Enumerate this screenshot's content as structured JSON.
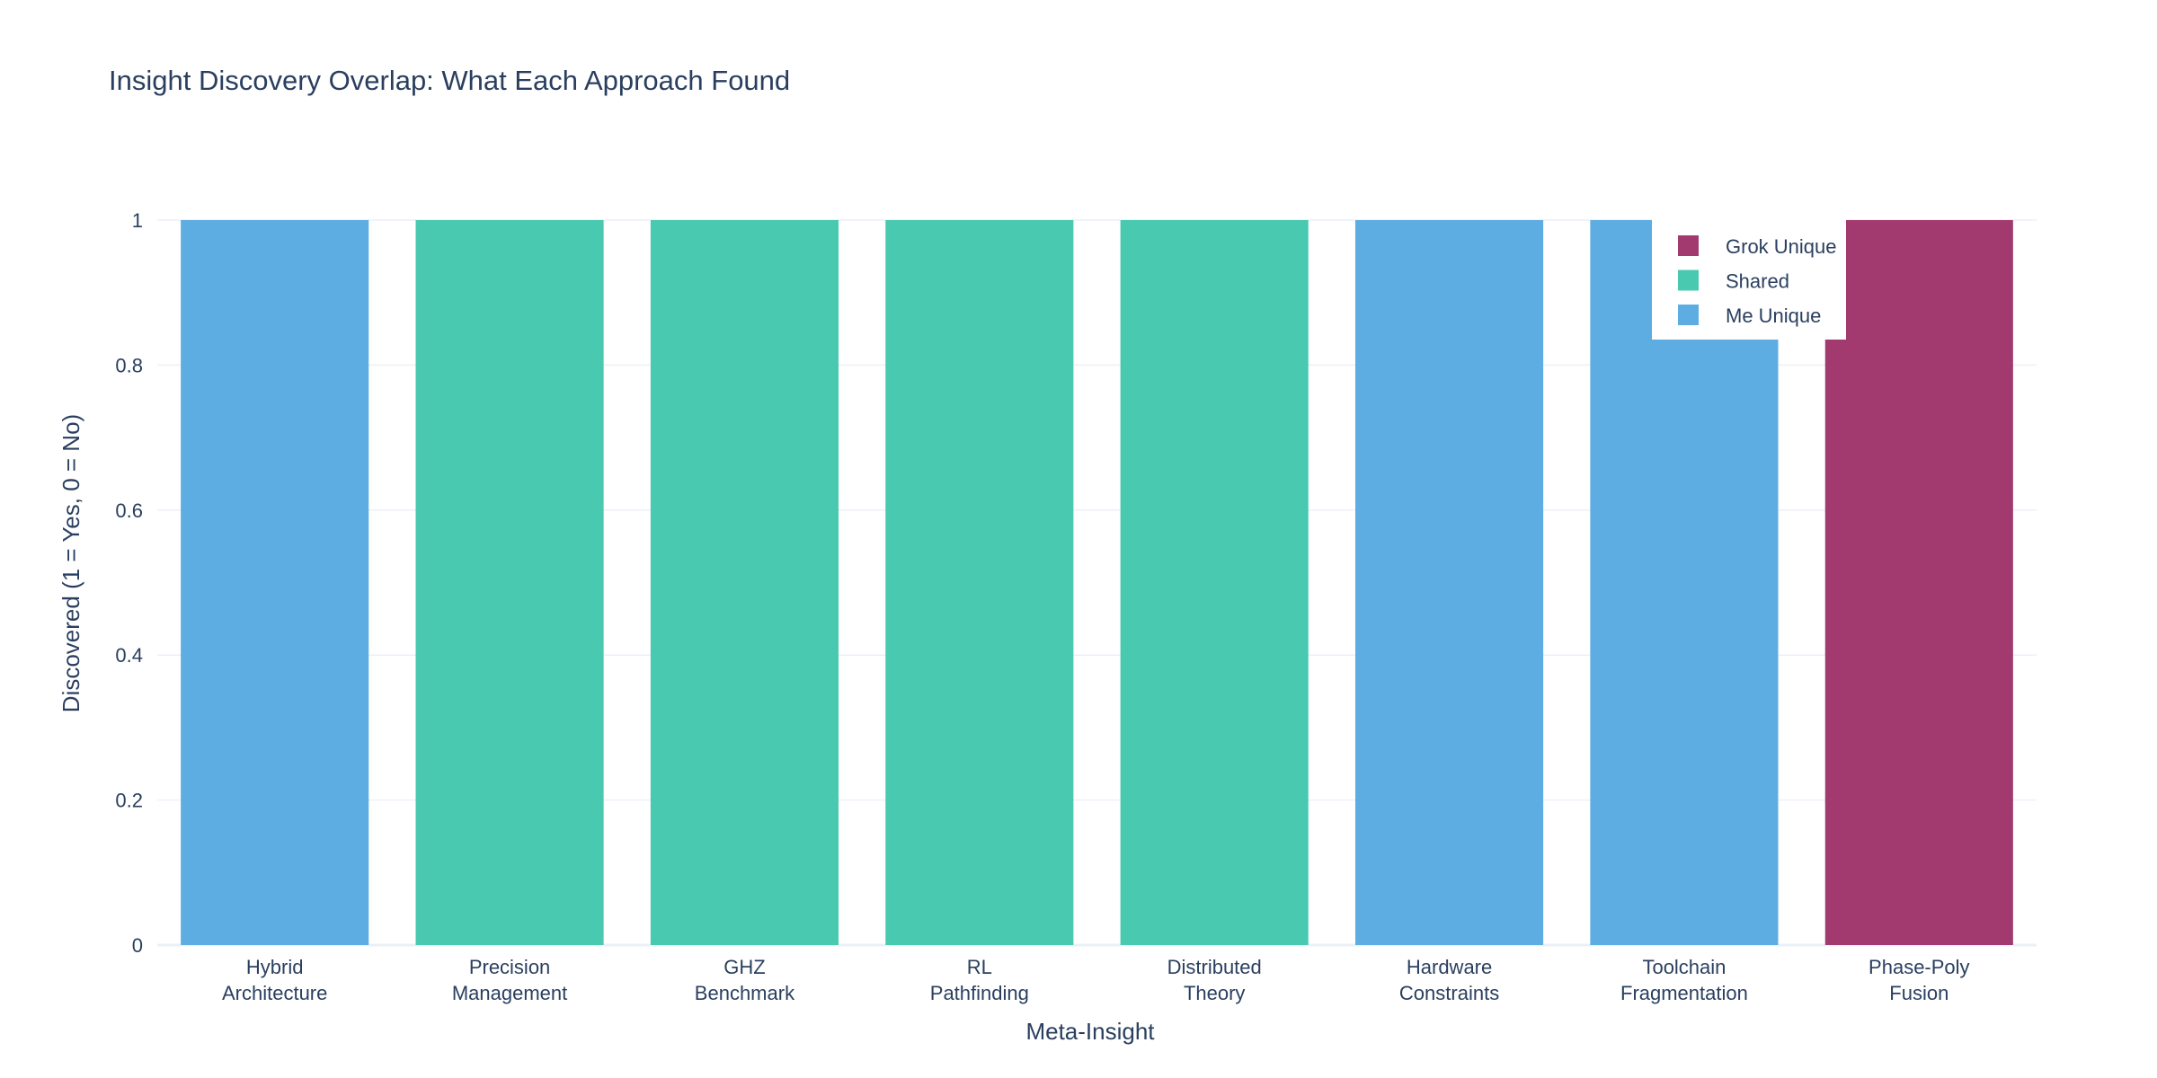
{
  "chart_data": {
    "type": "bar",
    "title": "Insight Discovery Overlap: What Each Approach Found",
    "xlabel": "Meta-Insight",
    "ylabel": "Discovered (1 = Yes, 0 = No)",
    "ylim": [
      0,
      1
    ],
    "yticks": [
      "0",
      "0.2",
      "0.4",
      "0.6",
      "0.8",
      "1"
    ],
    "grid": true,
    "legend_position": "top-right",
    "categories": [
      [
        "Hybrid",
        "Architecture"
      ],
      [
        "Precision",
        "Management"
      ],
      [
        "GHZ",
        "Benchmark"
      ],
      [
        "RL",
        "Pathfinding"
      ],
      [
        "Distributed",
        "Theory"
      ],
      [
        "Hardware",
        "Constraints"
      ],
      [
        "Toolchain",
        "Fragmentation"
      ],
      [
        "Phase-Poly",
        "Fusion"
      ]
    ],
    "series": [
      {
        "name": "Me Unique",
        "color": "#5dade2",
        "values": [
          1,
          0,
          0,
          0,
          0,
          1,
          1,
          0
        ]
      },
      {
        "name": "Shared",
        "color": "#48c9b0",
        "values": [
          0,
          1,
          1,
          1,
          1,
          0,
          0,
          0
        ]
      },
      {
        "name": "Grok Unique",
        "color": "#a33a6f",
        "values": [
          0,
          0,
          0,
          0,
          0,
          0,
          0,
          1
        ]
      }
    ],
    "legend_order": [
      "Grok Unique",
      "Shared",
      "Me Unique"
    ]
  }
}
